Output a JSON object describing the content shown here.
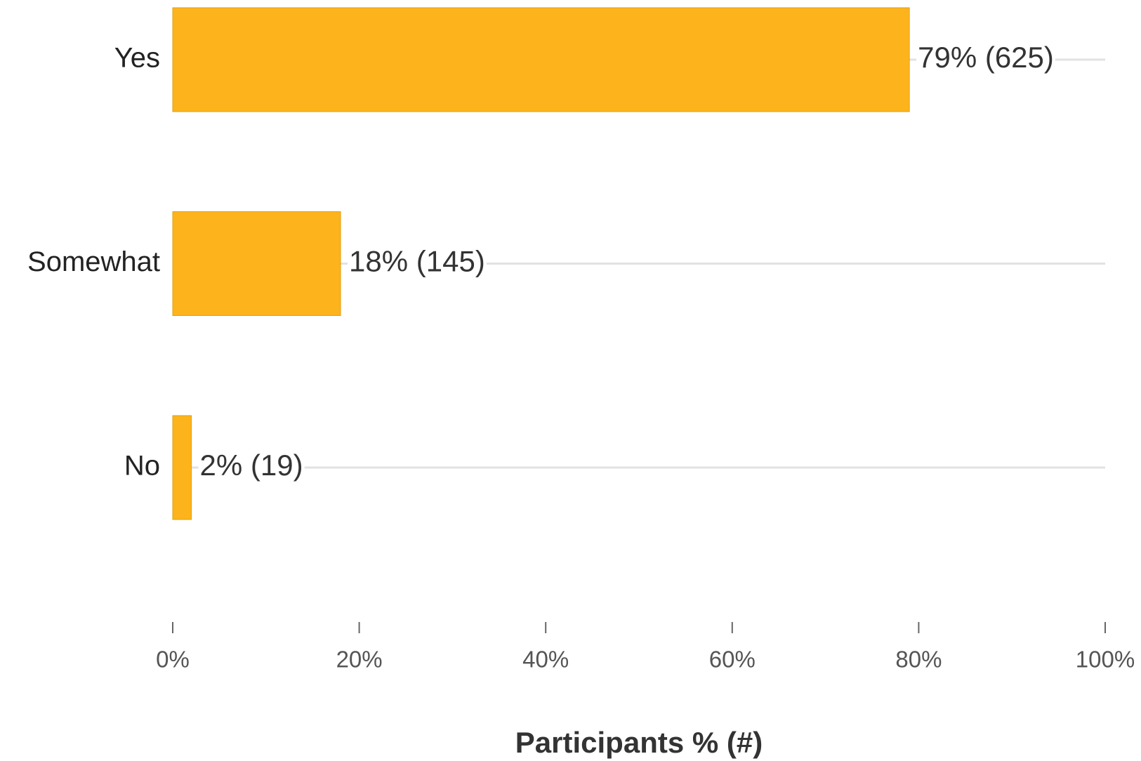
{
  "chart_data": {
    "type": "bar",
    "orientation": "horizontal",
    "x_label": "Participants % (#)",
    "categories": [
      "Yes",
      "Somewhat",
      "No"
    ],
    "values": [
      79,
      18,
      2
    ],
    "value_labels": [
      "79% (625)",
      "18% (145)",
      "2% (19)"
    ],
    "color": "#fdb41c",
    "xlim": [
      0,
      100
    ],
    "xticks": [
      {
        "value": 0,
        "label": "0%"
      },
      {
        "value": 20,
        "label": "20%"
      },
      {
        "value": 40,
        "label": "40%"
      },
      {
        "value": 60,
        "label": "60%"
      },
      {
        "value": 80,
        "label": "80%"
      },
      {
        "value": 100,
        "label": "100%"
      }
    ],
    "grid": false
  }
}
